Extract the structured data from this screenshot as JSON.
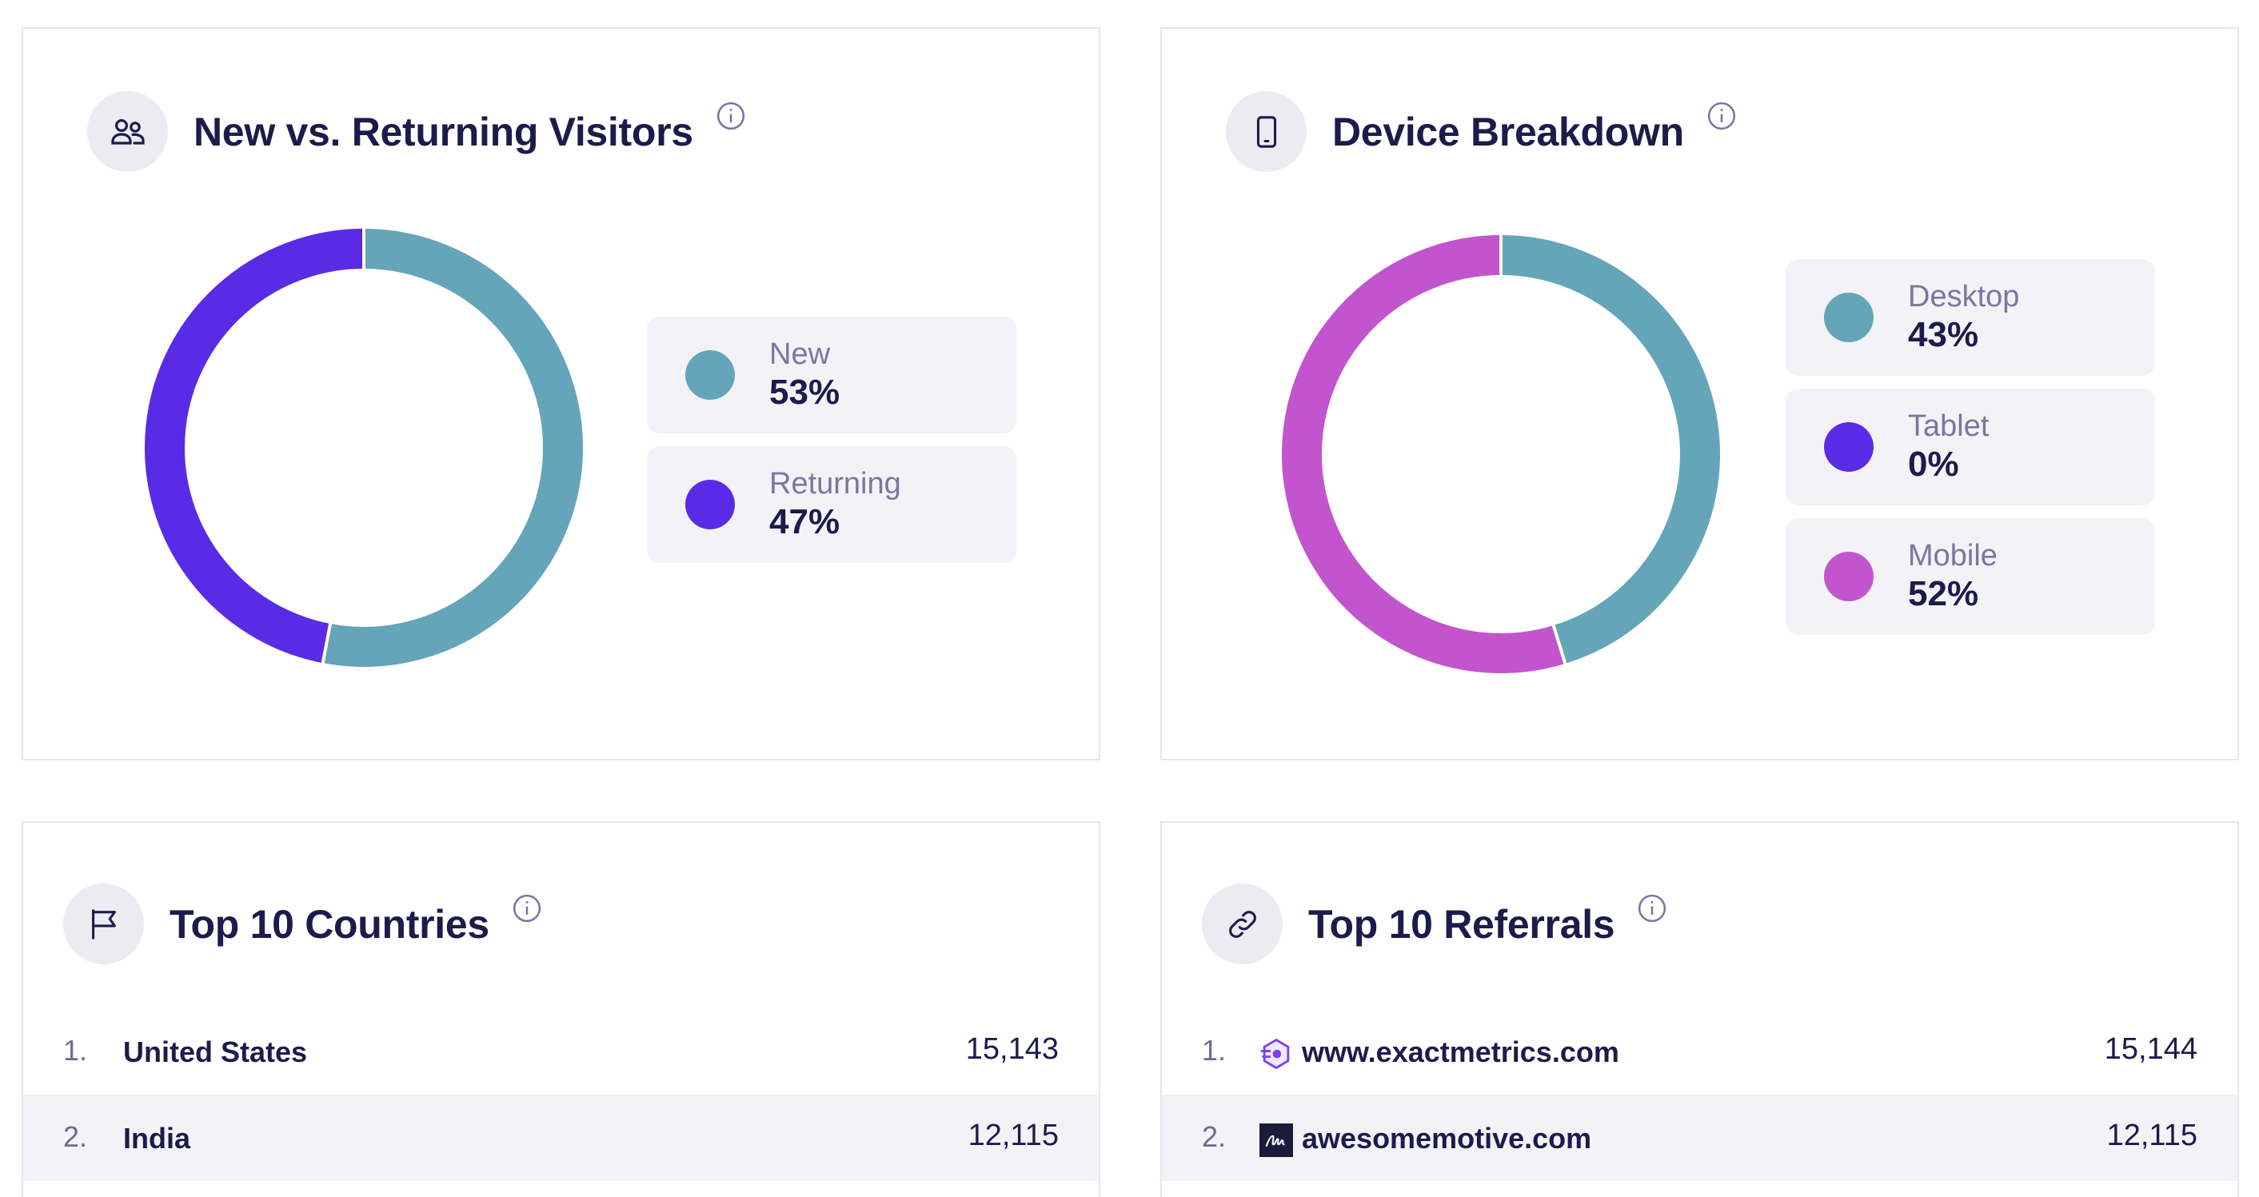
{
  "visitors": {
    "title": "New vs. Returning Visitors",
    "header_icon": "users-icon",
    "segments": [
      {
        "label": "New",
        "value": "53%",
        "percent": 53,
        "color": "#65a5b9"
      },
      {
        "label": "Returning",
        "value": "47%",
        "percent": 47,
        "color": "#5a2be6"
      }
    ]
  },
  "devices": {
    "title": "Device Breakdown",
    "header_icon": "mobile-device-icon",
    "segments": [
      {
        "label": "Desktop",
        "value": "43%",
        "percent": 43,
        "color": "#65a5b9"
      },
      {
        "label": "Tablet",
        "value": "0%",
        "percent": 0,
        "color": "#5a2be6"
      },
      {
        "label": "Mobile",
        "value": "52%",
        "percent": 52,
        "color": "#c255ce"
      }
    ]
  },
  "countries": {
    "title": "Top 10 Countries",
    "header_icon": "flag-icon",
    "rows": [
      {
        "rank": "1.",
        "name": "United States",
        "value": "15,143"
      },
      {
        "rank": "2.",
        "name": "India",
        "value": "12,115"
      }
    ]
  },
  "referrals": {
    "title": "Top 10 Referrals",
    "header_icon": "link-icon",
    "rows": [
      {
        "rank": "1.",
        "name": "www.exactmetrics.com",
        "value": "15,144",
        "favicon": "exactmetrics-favicon-icon"
      },
      {
        "rank": "2.",
        "name": "awesomemotive.com",
        "value": "12,115",
        "favicon": "awesomemotive-favicon-icon"
      }
    ]
  }
}
